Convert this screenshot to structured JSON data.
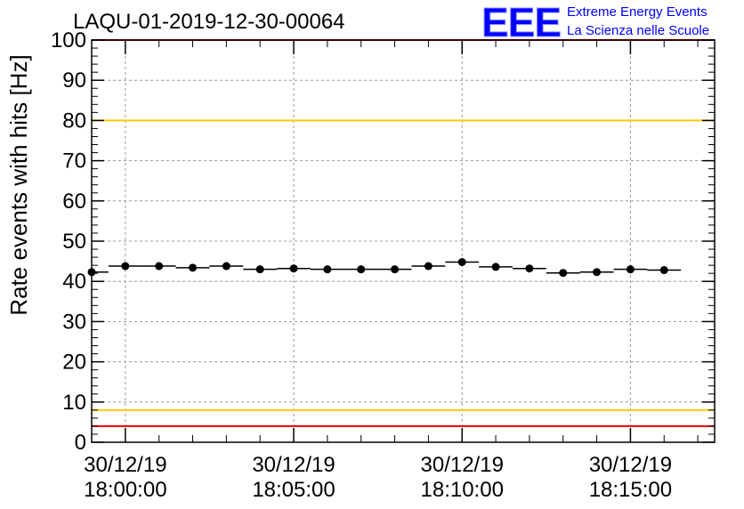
{
  "chart_data": {
    "type": "scatter",
    "title": "LAQU-01-2019-12-30-00064",
    "ylabel": "Rate events with hits [Hz]",
    "xlabel": "",
    "ylim": [
      0,
      100
    ],
    "xlim_minutes": [
      -1.0,
      17.5
    ],
    "y_ticks": [
      0,
      10,
      20,
      30,
      40,
      50,
      60,
      70,
      80,
      90,
      100
    ],
    "x_ticks": [
      {
        "minute": 0,
        "date": "30/12/19",
        "time": "18:00:00"
      },
      {
        "minute": 5,
        "date": "30/12/19",
        "time": "18:05:00"
      },
      {
        "minute": 10,
        "date": "30/12/19",
        "time": "18:10:00"
      },
      {
        "minute": 15,
        "date": "30/12/19",
        "time": "18:15:00"
      }
    ],
    "bin_width_minutes": 1,
    "series": [
      {
        "name": "rate",
        "x_minutes": [
          -1,
          0,
          1,
          2,
          3,
          4,
          5,
          6,
          7,
          8,
          9,
          10,
          11,
          12,
          13,
          14,
          15,
          16
        ],
        "values": [
          42.3,
          43.8,
          43.8,
          43.4,
          43.8,
          43.0,
          43.2,
          43.0,
          43.0,
          43.0,
          43.8,
          44.8,
          43.6,
          43.2,
          42.1,
          42.3,
          43.0,
          42.8
        ]
      }
    ],
    "reference_lines": [
      {
        "name": "upper-red-line",
        "value": 100,
        "color": "#ff0000"
      },
      {
        "name": "upper-yellow-line",
        "value": 80,
        "color": "#ffcc00"
      },
      {
        "name": "lower-yellow-line",
        "value": 8,
        "color": "#ffcc00"
      },
      {
        "name": "lower-red-line",
        "value": 4,
        "color": "#ff0000"
      }
    ],
    "grid": true
  },
  "logo": {
    "letters": "EEE",
    "line1": "Extreme Energy Events",
    "line2": "La Scienza nelle Scuole",
    "color": "#0000ff"
  }
}
